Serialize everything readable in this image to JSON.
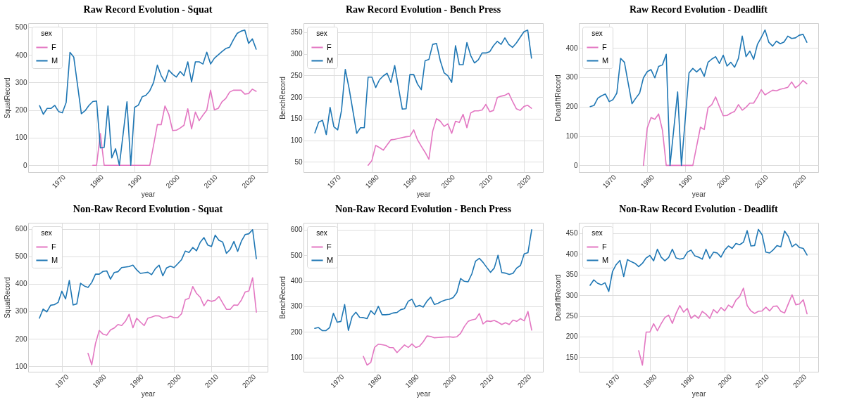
{
  "chart_data": [
    {
      "type": "line",
      "title": "Raw Record Evolution - Squat",
      "xlabel": "year",
      "ylabel": "SquatRecord",
      "legend_title": "sex",
      "legend": "top left",
      "grid": true,
      "line_style": "solid",
      "xlim": [
        1962,
        2025
      ],
      "xticks": [
        1970,
        1980,
        1990,
        2000,
        2010,
        2020
      ],
      "ylim": [
        -25,
        515
      ],
      "yticks": [
        0,
        100,
        200,
        300,
        400,
        500
      ],
      "series": [
        {
          "name": "F",
          "color": "#e377c2",
          "x": [
            1979,
            1980,
            1981,
            1982,
            1983,
            1984,
            1985,
            1986,
            1987,
            1988,
            1989,
            1990,
            1991,
            1992,
            1993,
            1994,
            1995,
            1996,
            1997,
            1998,
            1999,
            2000,
            2001,
            2002,
            2003,
            2004,
            2005,
            2006,
            2007,
            2008,
            2009,
            2010,
            2011,
            2012,
            2013,
            2014,
            2015,
            2016,
            2017,
            2018,
            2019,
            2020,
            2021,
            2022
          ],
          "values": [
            0,
            0,
            115,
            0,
            0,
            0,
            0,
            0,
            0,
            0,
            0,
            0,
            0,
            0,
            0,
            0,
            73,
            148,
            147,
            215,
            185,
            126,
            127,
            135,
            145,
            205,
            132,
            193,
            162,
            182,
            200,
            272,
            201,
            206,
            230,
            242,
            265,
            272,
            272,
            272,
            258,
            260,
            276,
            268
          ]
        },
        {
          "name": "M",
          "color": "#1f77b4",
          "x": [
            1965,
            1966,
            1967,
            1968,
            1969,
            1970,
            1971,
            1972,
            1973,
            1974,
            1975,
            1976,
            1977,
            1978,
            1979,
            1980,
            1981,
            1982,
            1983,
            1984,
            1985,
            1986,
            1987,
            1988,
            1989,
            1990,
            1991,
            1992,
            1993,
            1994,
            1995,
            1996,
            1997,
            1998,
            1999,
            2000,
            2001,
            2002,
            2003,
            2004,
            2005,
            2006,
            2007,
            2008,
            2009,
            2010,
            2011,
            2012,
            2013,
            2014,
            2015,
            2016,
            2017,
            2018,
            2019,
            2020,
            2021,
            2022
          ],
          "values": [
            216,
            185,
            206,
            206,
            217,
            195,
            190,
            228,
            409,
            392,
            290,
            187,
            198,
            217,
            231,
            233,
            63,
            65,
            215,
            27,
            60,
            0,
            115,
            230,
            0,
            210,
            218,
            248,
            254,
            270,
            300,
            363,
            325,
            302,
            345,
            330,
            320,
            340,
            325,
            375,
            302,
            375,
            375,
            367,
            410,
            367,
            388,
            400,
            412,
            423,
            428,
            455,
            478,
            486,
            490,
            442,
            458,
            421
          ]
        }
      ]
    },
    {
      "type": "line",
      "title": "Raw Record Evolution - Bench Press",
      "xlabel": "year",
      "ylabel": "BenchRecord",
      "legend_title": "sex",
      "legend": "top left",
      "grid": true,
      "line_style": "solid",
      "xlim": [
        1962,
        2025
      ],
      "xticks": [
        1970,
        1980,
        1990,
        2000,
        2010,
        2020
      ],
      "ylim": [
        26,
        371
      ],
      "yticks": [
        50,
        100,
        150,
        200,
        250,
        300,
        350
      ],
      "series": [
        {
          "name": "F",
          "color": "#e377c2",
          "x": [
            1979,
            1980,
            1981,
            1982,
            1983,
            1984,
            1985,
            1986,
            1987,
            1988,
            1989,
            1990,
            1991,
            1992,
            1993,
            1994,
            1995,
            1996,
            1997,
            1998,
            1999,
            2000,
            2001,
            2002,
            2003,
            2004,
            2005,
            2006,
            2007,
            2008,
            2009,
            2010,
            2011,
            2012,
            2013,
            2014,
            2015,
            2016,
            2017,
            2018,
            2019,
            2020,
            2021,
            2022
          ],
          "values": [
            42,
            53,
            88,
            83,
            77,
            89,
            101,
            102,
            104,
            106,
            108,
            109,
            124,
            101,
            86,
            72,
            56,
            121,
            150,
            144,
            132,
            138,
            116,
            144,
            141,
            160,
            129,
            163,
            168,
            168,
            170,
            183,
            166,
            169,
            199,
            202,
            204,
            209,
            190,
            173,
            169,
            178,
            181,
            174
          ]
        },
        {
          "name": "M",
          "color": "#1f77b4",
          "x": [
            1965,
            1966,
            1967,
            1968,
            1969,
            1970,
            1971,
            1972,
            1973,
            1974,
            1975,
            1976,
            1977,
            1978,
            1979,
            1980,
            1981,
            1982,
            1983,
            1984,
            1985,
            1986,
            1987,
            1988,
            1989,
            1990,
            1991,
            1992,
            1993,
            1994,
            1995,
            1996,
            1997,
            1998,
            1999,
            2000,
            2001,
            2002,
            2003,
            2004,
            2005,
            2006,
            2007,
            2008,
            2009,
            2010,
            2011,
            2012,
            2013,
            2014,
            2015,
            2016,
            2017,
            2018,
            2019,
            2020,
            2021,
            2022
          ],
          "values": [
            117,
            142,
            146,
            113,
            176,
            131,
            124,
            169,
            264,
            220,
            168,
            116,
            129,
            129,
            246,
            246,
            222,
            240,
            249,
            255,
            234,
            273,
            222,
            172,
            173,
            252,
            252,
            230,
            217,
            284,
            287,
            322,
            324,
            284,
            256,
            249,
            234,
            319,
            275,
            275,
            326,
            296,
            279,
            286,
            302,
            302,
            305,
            319,
            329,
            322,
            337,
            322,
            315,
            325,
            338,
            351,
            355,
            290
          ]
        }
      ]
    },
    {
      "type": "line",
      "title": "Raw Record Evolution - Deadlift",
      "xlabel": "year",
      "ylabel": "DeadliftRecord",
      "legend_title": "sex",
      "legend": "top left",
      "grid": true,
      "line_style": "solid",
      "xlim": [
        1962,
        2025
      ],
      "xticks": [
        1970,
        1980,
        1990,
        2000,
        2010,
        2020
      ],
      "ylim": [
        -23,
        484
      ],
      "yticks": [
        0,
        100,
        200,
        300,
        400
      ],
      "series": [
        {
          "name": "F",
          "color": "#e377c2",
          "x": [
            1979,
            1980,
            1981,
            1982,
            1983,
            1984,
            1985,
            1986,
            1987,
            1988,
            1989,
            1990,
            1991,
            1992,
            1993,
            1994,
            1995,
            1996,
            1997,
            1998,
            1999,
            2000,
            2001,
            2002,
            2003,
            2004,
            2005,
            2006,
            2007,
            2008,
            2009,
            2010,
            2011,
            2012,
            2013,
            2014,
            2015,
            2016,
            2017,
            2018,
            2019,
            2020,
            2021,
            2022
          ],
          "values": [
            0,
            127,
            163,
            157,
            175,
            120,
            0,
            0,
            0,
            0,
            0,
            0,
            0,
            0,
            65,
            130,
            122,
            196,
            207,
            233,
            200,
            169,
            170,
            178,
            184,
            207,
            188,
            198,
            212,
            212,
            233,
            258,
            240,
            248,
            256,
            254,
            259,
            262,
            266,
            284,
            264,
            274,
            289,
            278
          ]
        },
        {
          "name": "M",
          "color": "#1f77b4",
          "x": [
            1965,
            1966,
            1967,
            1968,
            1969,
            1970,
            1971,
            1972,
            1973,
            1974,
            1975,
            1976,
            1977,
            1978,
            1979,
            1980,
            1981,
            1982,
            1983,
            1984,
            1985,
            1986,
            1987,
            1988,
            1989,
            1990,
            1991,
            1992,
            1993,
            1994,
            1995,
            1996,
            1997,
            1998,
            1999,
            2000,
            2001,
            2002,
            2003,
            2004,
            2005,
            2006,
            2007,
            2008,
            2009,
            2010,
            2011,
            2012,
            2013,
            2014,
            2015,
            2016,
            2017,
            2018,
            2019,
            2020,
            2021,
            2022
          ],
          "values": [
            200,
            204,
            229,
            237,
            243,
            217,
            224,
            246,
            364,
            351,
            279,
            210,
            229,
            246,
            298,
            319,
            326,
            298,
            337,
            342,
            378,
            0,
            125,
            250,
            0,
            157,
            315,
            330,
            318,
            330,
            303,
            351,
            362,
            370,
            347,
            375,
            338,
            351,
            334,
            364,
            440,
            370,
            389,
            361,
            412,
            435,
            461,
            419,
            406,
            423,
            414,
            420,
            440,
            432,
            434,
            443,
            446,
            419
          ]
        }
      ]
    },
    {
      "type": "line",
      "title": "Non-Raw Record Evolution - Squat",
      "xlabel": "year",
      "ylabel": "SquatRecord",
      "legend_title": "sex",
      "legend": "top left",
      "grid": true,
      "line_style": "solid",
      "xlim": [
        1961,
        2025
      ],
      "xticks": [
        1970,
        1980,
        1990,
        2000,
        2010,
        2020
      ],
      "ylim": [
        80,
        622
      ],
      "yticks": [
        100,
        200,
        300,
        400,
        500,
        600
      ],
      "series": [
        {
          "name": "F",
          "color": "#e377c2",
          "x": [
            1977,
            1978,
            1979,
            1980,
            1981,
            1982,
            1983,
            1984,
            1985,
            1986,
            1987,
            1988,
            1989,
            1990,
            1991,
            1992,
            1993,
            1994,
            1995,
            1996,
            1997,
            1998,
            1999,
            2000,
            2001,
            2002,
            2003,
            2004,
            2005,
            2006,
            2007,
            2008,
            2009,
            2010,
            2011,
            2012,
            2013,
            2014,
            2015,
            2016,
            2017,
            2018,
            2019,
            2020,
            2021,
            2022
          ],
          "values": [
            147,
            105,
            183,
            230,
            217,
            213,
            232,
            239,
            252,
            248,
            264,
            289,
            240,
            275,
            261,
            248,
            275,
            279,
            284,
            283,
            275,
            277,
            282,
            277,
            277,
            291,
            342,
            347,
            390,
            365,
            351,
            320,
            341,
            336,
            340,
            354,
            330,
            307,
            307,
            323,
            322,
            341,
            370,
            374,
            422,
            297
          ]
        },
        {
          "name": "M",
          "color": "#1f77b4",
          "x": [
            1964,
            1965,
            1966,
            1967,
            1968,
            1969,
            1970,
            1971,
            1972,
            1973,
            1974,
            1975,
            1976,
            1977,
            1978,
            1979,
            1980,
            1981,
            1982,
            1983,
            1984,
            1985,
            1986,
            1987,
            1988,
            1989,
            1990,
            1991,
            1992,
            1993,
            1994,
            1995,
            1996,
            1997,
            1998,
            1999,
            2000,
            2001,
            2002,
            2003,
            2004,
            2005,
            2006,
            2007,
            2008,
            2009,
            2010,
            2011,
            2012,
            2013,
            2014,
            2015,
            2016,
            2017,
            2018,
            2019,
            2020,
            2021,
            2022
          ],
          "values": [
            275,
            308,
            298,
            322,
            324,
            332,
            373,
            345,
            412,
            323,
            327,
            402,
            392,
            387,
            405,
            435,
            435,
            445,
            447,
            417,
            441,
            444,
            459,
            461,
            463,
            468,
            451,
            438,
            440,
            442,
            433,
            455,
            468,
            429,
            458,
            464,
            459,
            473,
            488,
            519,
            514,
            532,
            520,
            551,
            568,
            541,
            536,
            577,
            558,
            552,
            511,
            525,
            554,
            518,
            555,
            579,
            582,
            597,
            491
          ]
        }
      ]
    },
    {
      "type": "line",
      "title": "Non-Raw Record Evolution - Bench Press",
      "xlabel": "year",
      "ylabel": "BenchRecord",
      "legend_title": "sex",
      "legend": "top left",
      "grid": true,
      "line_style": "solid",
      "xlim": [
        1961,
        2025
      ],
      "xticks": [
        1970,
        1980,
        1990,
        2000,
        2010,
        2020
      ],
      "ylim": [
        44,
        627
      ],
      "yticks": [
        100,
        200,
        300,
        400,
        500,
        600
      ],
      "series": [
        {
          "name": "F",
          "color": "#e377c2",
          "x": [
            1977,
            1978,
            1979,
            1980,
            1981,
            1982,
            1983,
            1984,
            1985,
            1986,
            1987,
            1988,
            1989,
            1990,
            1991,
            1992,
            1993,
            1994,
            1995,
            1996,
            1997,
            1998,
            1999,
            2000,
            2001,
            2002,
            2003,
            2004,
            2005,
            2006,
            2007,
            2008,
            2009,
            2010,
            2011,
            2012,
            2013,
            2014,
            2015,
            2016,
            2017,
            2018,
            2019,
            2020,
            2021,
            2022
          ],
          "values": [
            104,
            70,
            81,
            139,
            152,
            150,
            147,
            139,
            138,
            119,
            134,
            149,
            139,
            153,
            139,
            144,
            161,
            184,
            182,
            177,
            178,
            179,
            180,
            181,
            179,
            181,
            194,
            221,
            241,
            247,
            250,
            272,
            231,
            243,
            241,
            245,
            238,
            229,
            236,
            229,
            246,
            241,
            252,
            243,
            280,
            207
          ]
        },
        {
          "name": "M",
          "color": "#1f77b4",
          "x": [
            1964,
            1965,
            1966,
            1967,
            1968,
            1969,
            1970,
            1971,
            1972,
            1973,
            1974,
            1975,
            1976,
            1977,
            1978,
            1979,
            1980,
            1981,
            1982,
            1983,
            1984,
            1985,
            1986,
            1987,
            1988,
            1989,
            1990,
            1991,
            1992,
            1993,
            1994,
            1995,
            1996,
            1997,
            1998,
            1999,
            2000,
            2001,
            2002,
            2003,
            2004,
            2005,
            2006,
            2007,
            2008,
            2009,
            2010,
            2011,
            2012,
            2013,
            2014,
            2015,
            2016,
            2017,
            2018,
            2019,
            2020,
            2021,
            2022
          ],
          "values": [
            214,
            217,
            205,
            205,
            217,
            273,
            238,
            241,
            307,
            206,
            260,
            277,
            257,
            256,
            252,
            283,
            268,
            300,
            267,
            267,
            269,
            274,
            276,
            287,
            291,
            320,
            328,
            298,
            304,
            297,
            320,
            336,
            307,
            312,
            320,
            325,
            328,
            334,
            354,
            409,
            398,
            396,
            427,
            477,
            488,
            472,
            452,
            433,
            450,
            500,
            432,
            430,
            425,
            429,
            450,
            460,
            505,
            510,
            600
          ]
        }
      ]
    },
    {
      "type": "line",
      "title": "Non-Raw Record Evolution - Deadlift",
      "xlabel": "year",
      "ylabel": "DeadliftRecord",
      "legend_title": "sex",
      "legend": "top left",
      "grid": true,
      "line_style": "solid",
      "xlim": [
        1961,
        2025
      ],
      "xticks": [
        1970,
        1980,
        1990,
        2000,
        2010,
        2020
      ],
      "ylim": [
        115,
        475
      ],
      "yticks": [
        150,
        200,
        250,
        300,
        350,
        400,
        450
      ],
      "series": [
        {
          "name": "F",
          "color": "#e377c2",
          "x": [
            1977,
            1978,
            1979,
            1980,
            1981,
            1982,
            1983,
            1984,
            1985,
            1986,
            1987,
            1988,
            1989,
            1990,
            1991,
            1992,
            1993,
            1994,
            1995,
            1996,
            1997,
            1998,
            1999,
            2000,
            2001,
            2002,
            2003,
            2004,
            2005,
            2006,
            2007,
            2008,
            2009,
            2010,
            2011,
            2012,
            2013,
            2014,
            2015,
            2016,
            2017,
            2018,
            2019,
            2020,
            2021,
            2022
          ],
          "values": [
            166,
            131,
            211,
            211,
            231,
            214,
            231,
            246,
            252,
            232,
            256,
            275,
            259,
            268,
            244,
            252,
            244,
            261,
            254,
            244,
            265,
            257,
            270,
            262,
            276,
            270,
            288,
            297,
            317,
            275,
            262,
            256,
            261,
            262,
            271,
            262,
            273,
            274,
            261,
            257,
            279,
            301,
            277,
            279,
            289,
            255
          ]
        },
        {
          "name": "M",
          "color": "#1f77b4",
          "x": [
            1964,
            1965,
            1966,
            1967,
            1968,
            1969,
            1970,
            1971,
            1972,
            1973,
            1974,
            1975,
            1976,
            1977,
            1978,
            1979,
            1980,
            1981,
            1982,
            1983,
            1984,
            1985,
            1986,
            1987,
            1988,
            1989,
            1990,
            1991,
            1992,
            1993,
            1994,
            1995,
            1996,
            1997,
            1998,
            1999,
            2000,
            2001,
            2002,
            2003,
            2004,
            2005,
            2006,
            2007,
            2008,
            2009,
            2010,
            2011,
            2012,
            2013,
            2014,
            2015,
            2016,
            2017,
            2018,
            2019,
            2020,
            2021,
            2022
          ],
          "values": [
            324,
            337,
            329,
            325,
            330,
            309,
            357,
            374,
            384,
            345,
            386,
            381,
            377,
            369,
            377,
            390,
            396,
            383,
            411,
            392,
            383,
            391,
            411,
            390,
            387,
            389,
            404,
            409,
            395,
            392,
            387,
            411,
            389,
            404,
            402,
            392,
            409,
            419,
            413,
            425,
            422,
            428,
            456,
            419,
            420,
            459,
            446,
            404,
            402,
            410,
            420,
            417,
            455,
            442,
            417,
            424,
            415,
            413,
            397
          ]
        }
      ]
    }
  ]
}
